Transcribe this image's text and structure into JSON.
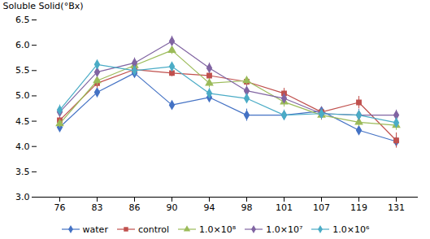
{
  "chart_data": {
    "type": "line",
    "ylabel": "Soluble Solid(°Bx)",
    "categories": [
      "76",
      "83",
      "86",
      "90",
      "94",
      "98",
      "101",
      "107",
      "119",
      "131"
    ],
    "series": [
      {
        "name": "water",
        "color": "#4472C4",
        "marker": "diamond",
        "values": [
          4.38,
          5.07,
          5.45,
          4.82,
          4.97,
          4.62,
          4.62,
          4.7,
          4.32,
          4.1
        ],
        "yerr": [
          0.08,
          0.1,
          0.08,
          0.07,
          0.07,
          0.12,
          0.1,
          0.06,
          0.1,
          0.1
        ]
      },
      {
        "name": "control",
        "color": "#C0504D",
        "marker": "square",
        "values": [
          4.52,
          5.25,
          5.52,
          5.45,
          5.4,
          5.28,
          5.05,
          4.68,
          4.87,
          4.12
        ],
        "yerr": [
          0.08,
          0.1,
          0.08,
          0.07,
          0.08,
          0.08,
          0.1,
          0.1,
          0.12,
          0.15
        ]
      },
      {
        "name": "1.0×10⁸",
        "color": "#9BBB59",
        "marker": "triangle",
        "values": [
          4.45,
          5.3,
          5.6,
          5.9,
          5.25,
          5.3,
          4.88,
          4.62,
          4.48,
          4.42
        ],
        "yerr": [
          0.08,
          0.1,
          0.08,
          0.08,
          0.09,
          0.08,
          0.1,
          0.1,
          0.08,
          0.1
        ]
      },
      {
        "name": "1.0×10⁷",
        "color": "#8064A2",
        "marker": "diamond",
        "values": [
          4.68,
          5.47,
          5.65,
          6.08,
          5.55,
          5.1,
          4.95,
          4.65,
          4.62,
          4.62
        ],
        "yerr": [
          0.1,
          0.1,
          0.1,
          0.1,
          0.1,
          0.1,
          0.1,
          0.12,
          0.12,
          0.1
        ]
      },
      {
        "name": "1.0×10⁶",
        "color": "#4BACC6",
        "marker": "diamond",
        "values": [
          4.72,
          5.62,
          5.5,
          5.58,
          5.05,
          4.95,
          4.62,
          4.65,
          4.62,
          4.47
        ],
        "yerr": [
          0.1,
          0.08,
          0.1,
          0.08,
          0.1,
          0.1,
          0.1,
          0.08,
          0.1,
          0.1
        ]
      }
    ],
    "ylim": [
      3.0,
      6.5
    ],
    "yticks": [
      {
        "value": 3.0,
        "label": "3.0"
      },
      3.5,
      {
        "value": 4.0,
        "label": "4.0"
      },
      4.5,
      {
        "value": 5.0,
        "label": "5.0"
      },
      5.5,
      {
        "value": 6.0,
        "label": "6.0"
      },
      6.5
    ],
    "grid": false,
    "legend": "bottom"
  }
}
